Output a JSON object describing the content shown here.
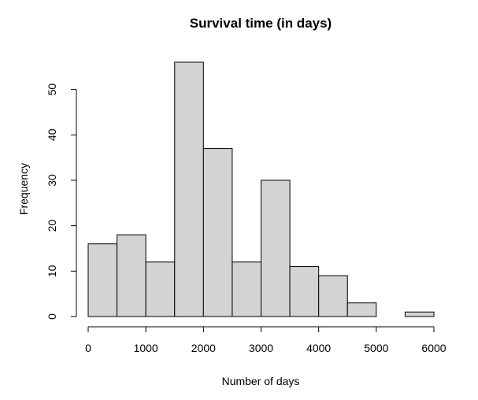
{
  "chart_data": {
    "type": "bar",
    "title": "Survival time (in days)",
    "xlabel": "Number of days",
    "ylabel": "Frequency",
    "bins": [
      {
        "start": 0,
        "end": 500,
        "count": 16
      },
      {
        "start": 500,
        "end": 1000,
        "count": 18
      },
      {
        "start": 1000,
        "end": 1500,
        "count": 12
      },
      {
        "start": 1500,
        "end": 2000,
        "count": 56
      },
      {
        "start": 2000,
        "end": 2500,
        "count": 37
      },
      {
        "start": 2500,
        "end": 3000,
        "count": 12
      },
      {
        "start": 3000,
        "end": 3500,
        "count": 30
      },
      {
        "start": 3500,
        "end": 4000,
        "count": 11
      },
      {
        "start": 4000,
        "end": 4500,
        "count": 9
      },
      {
        "start": 4500,
        "end": 5000,
        "count": 3
      },
      {
        "start": 5000,
        "end": 5500,
        "count": 0
      },
      {
        "start": 5500,
        "end": 6000,
        "count": 1
      }
    ],
    "xlim": [
      0,
      6000
    ],
    "ylim": [
      0,
      56
    ],
    "x_ticks": [
      "0",
      "1000",
      "2000",
      "3000",
      "4000",
      "5000",
      "6000"
    ],
    "y_ticks": [
      "0",
      "10",
      "20",
      "30",
      "40",
      "50"
    ],
    "bar_fill": "#d3d3d3",
    "bar_stroke": "#000000",
    "grid": false,
    "legend": "none"
  }
}
